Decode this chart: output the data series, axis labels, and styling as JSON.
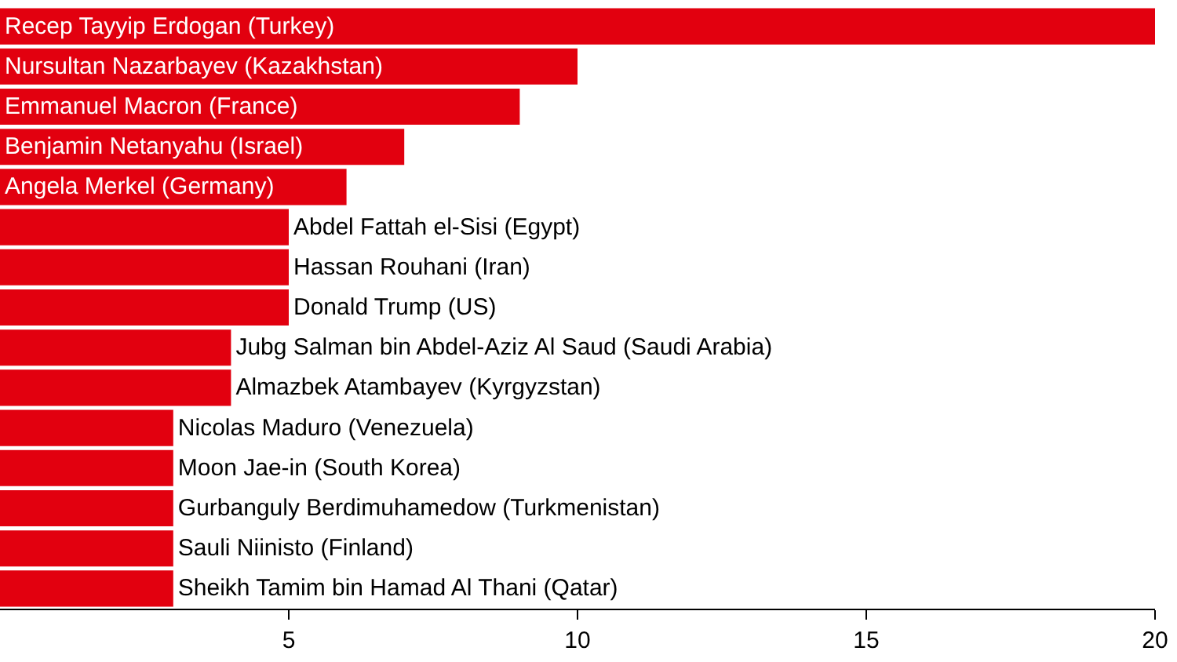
{
  "chart_data": {
    "type": "bar",
    "orientation": "horizontal",
    "categories": [
      "Recep Tayyip Erdogan (Turkey)",
      "Nursultan Nazarbayev (Kazakhstan)",
      "Emmanuel Macron (France)",
      "Benjamin Netanyahu (Israel)",
      "Angela Merkel (Germany)",
      "Abdel Fattah el-Sisi (Egypt)",
      "Hassan Rouhani (Iran)",
      "Donald Trump (US)",
      "Jubg Salman bin Abdel-Aziz Al Saud (Saudi Arabia)",
      "Almazbek Atambayev (Kyrgyzstan)",
      "Nicolas Maduro (Venezuela)",
      "Moon Jae-in (South Korea)",
      "Gurbanguly Berdimuhamedow (Turkmenistan)",
      "Sauli Niinisto (Finland)",
      "Sheikh Tamim bin Hamad Al Thani (Qatar)"
    ],
    "values": [
      20,
      10,
      9,
      7,
      6,
      5,
      5,
      5,
      4,
      4,
      3,
      3,
      3,
      3,
      3
    ],
    "color": "#e2000f",
    "xlim": [
      0,
      20
    ],
    "xticks": [
      5,
      10,
      15,
      20
    ],
    "grid": false
  }
}
